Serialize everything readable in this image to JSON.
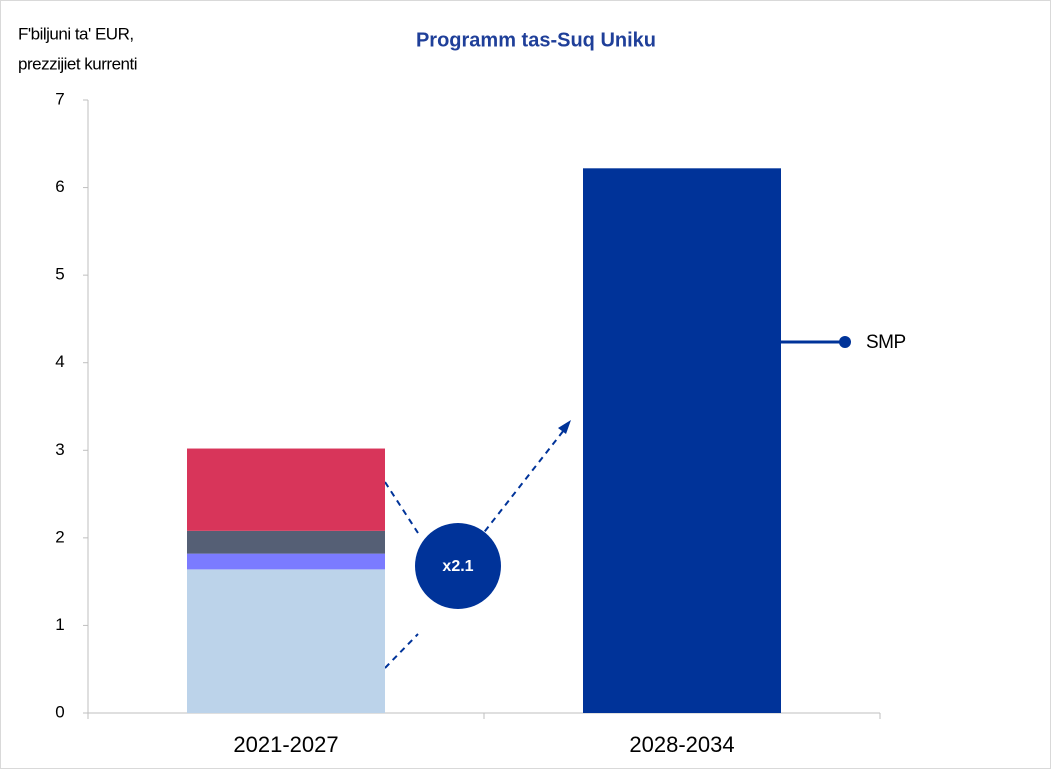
{
  "chart_data": {
    "type": "stacked_bar",
    "title": "Programm tas-Suq Uniku",
    "y_label": [
      "F'biljuni ta' EUR,",
      "prezzijiet kurrenti"
    ],
    "categories": [
      "2021-2027",
      "2028-2034"
    ],
    "series": [
      {
        "color": "#bcd3ea",
        "values": [
          1.64,
          null
        ]
      },
      {
        "color": "#7b7bff",
        "values": [
          0.18,
          null
        ]
      },
      {
        "color": "#555f75",
        "values": [
          0.26,
          null
        ]
      },
      {
        "color": "#d8355a",
        "values": [
          0.94,
          null
        ]
      },
      {
        "name": "SMP",
        "color": "#003399",
        "values": [
          null,
          6.22
        ]
      }
    ],
    "annotation": "x2.1",
    "ylim": [
      0,
      7
    ],
    "yticks": [
      0,
      1,
      2,
      3,
      4,
      5,
      6,
      7
    ]
  }
}
